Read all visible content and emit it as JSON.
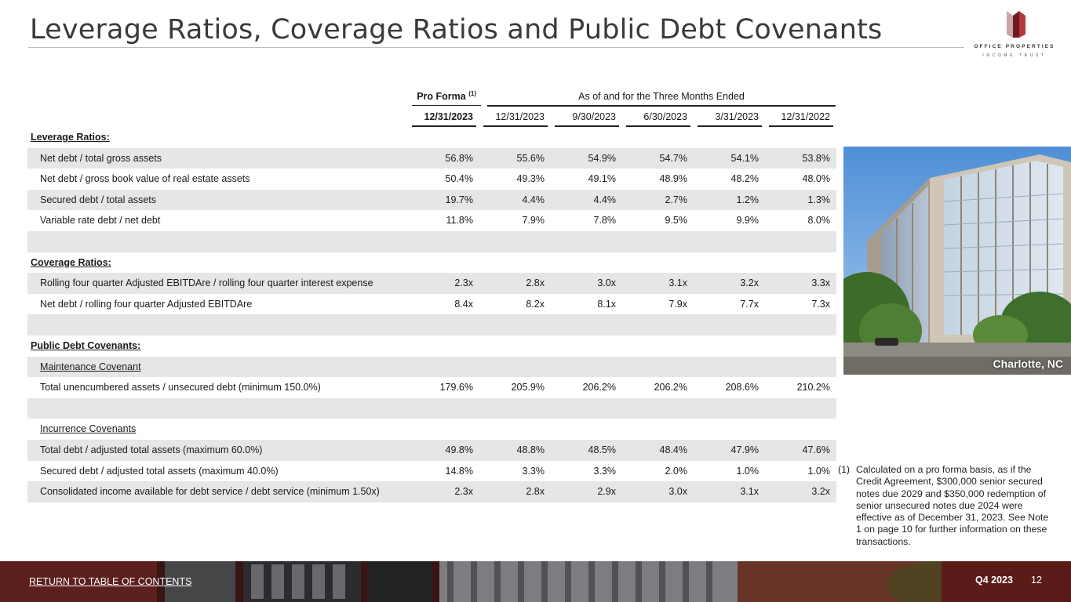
{
  "title": "Leverage Ratios, Coverage Ratios and Public Debt Covenants",
  "logo": {
    "line1": "OFFICE PROPERTIES",
    "line2": "INCOME TRUST",
    "colors": {
      "dark": "#6b1d22",
      "red": "#b5383c",
      "light": "#c9a6a4"
    }
  },
  "table": {
    "pro_forma_label": "Pro Forma",
    "pro_forma_note": "(1)",
    "as_of_label": "As of and for the Three Months Ended",
    "columns": [
      "12/31/2023",
      "12/31/2023",
      "9/30/2023",
      "6/30/2023",
      "3/31/2023",
      "12/31/2022"
    ],
    "rows": [
      {
        "kind": "section",
        "label": "Leverage Ratios:",
        "values": []
      },
      {
        "kind": "data",
        "label": "Net debt / total gross assets",
        "values": [
          "56.8%",
          "55.6%",
          "54.9%",
          "54.7%",
          "54.1%",
          "53.8%"
        ]
      },
      {
        "kind": "data",
        "label": "Net debt / gross book value of real estate assets",
        "values": [
          "50.4%",
          "49.3%",
          "49.1%",
          "48.9%",
          "48.2%",
          "48.0%"
        ]
      },
      {
        "kind": "data",
        "label": "Secured debt / total assets",
        "values": [
          "19.7%",
          "4.4%",
          "4.4%",
          "2.7%",
          "1.2%",
          "1.3%"
        ]
      },
      {
        "kind": "data",
        "label": "Variable rate debt / net debt",
        "values": [
          "11.8%",
          "7.9%",
          "7.8%",
          "9.5%",
          "9.9%",
          "8.0%"
        ]
      },
      {
        "kind": "blank",
        "label": "",
        "values": []
      },
      {
        "kind": "section",
        "label": "Coverage Ratios:",
        "values": []
      },
      {
        "kind": "data",
        "label": "Rolling four quarter Adjusted EBITDAre / rolling four quarter interest expense",
        "values": [
          "2.3x",
          "2.8x",
          "3.0x",
          "3.1x",
          "3.2x",
          "3.3x"
        ]
      },
      {
        "kind": "data",
        "label": "Net debt / rolling four quarter Adjusted EBITDAre",
        "values": [
          "8.4x",
          "8.2x",
          "8.1x",
          "7.9x",
          "7.7x",
          "7.3x"
        ]
      },
      {
        "kind": "blank",
        "label": "",
        "values": []
      },
      {
        "kind": "section",
        "label": "Public Debt Covenants:",
        "values": []
      },
      {
        "kind": "sub",
        "label": "Maintenance Covenant",
        "values": []
      },
      {
        "kind": "data",
        "label": "Total unencumbered assets / unsecured debt (minimum 150.0%)",
        "values": [
          "179.6%",
          "205.9%",
          "206.2%",
          "206.2%",
          "208.6%",
          "210.2%"
        ]
      },
      {
        "kind": "blank",
        "label": "",
        "values": []
      },
      {
        "kind": "sub",
        "label": "Incurrence Covenants",
        "values": []
      },
      {
        "kind": "data",
        "label": "Total debt / adjusted total assets (maximum 60.0%)",
        "values": [
          "49.8%",
          "48.8%",
          "48.5%",
          "48.4%",
          "47.9%",
          "47.6%"
        ]
      },
      {
        "kind": "data",
        "label": "Secured debt / adjusted total assets (maximum 40.0%)",
        "values": [
          "14.8%",
          "3.3%",
          "3.3%",
          "2.0%",
          "1.0%",
          "1.0%"
        ]
      },
      {
        "kind": "data",
        "label": "Consolidated income available for debt service / debt service (minimum 1.50x)",
        "values": [
          "2.3x",
          "2.8x",
          "2.9x",
          "3.0x",
          "3.1x",
          "3.2x"
        ]
      }
    ]
  },
  "photo": {
    "caption": "Charlotte, NC"
  },
  "footnote": {
    "number": "(1)",
    "text": "Calculated on a pro forma basis, as if the Credit Agreement, $300,000 senior secured notes due 2029 and $350,000 redemption of senior unsecured notes due 2024 were effective as of December 31, 2023. See Note 1 on page 10 for further information on these transactions."
  },
  "footer": {
    "link": "RETURN TO TABLE OF CONTENTS",
    "quarter": "Q4 2023",
    "page": "12"
  }
}
